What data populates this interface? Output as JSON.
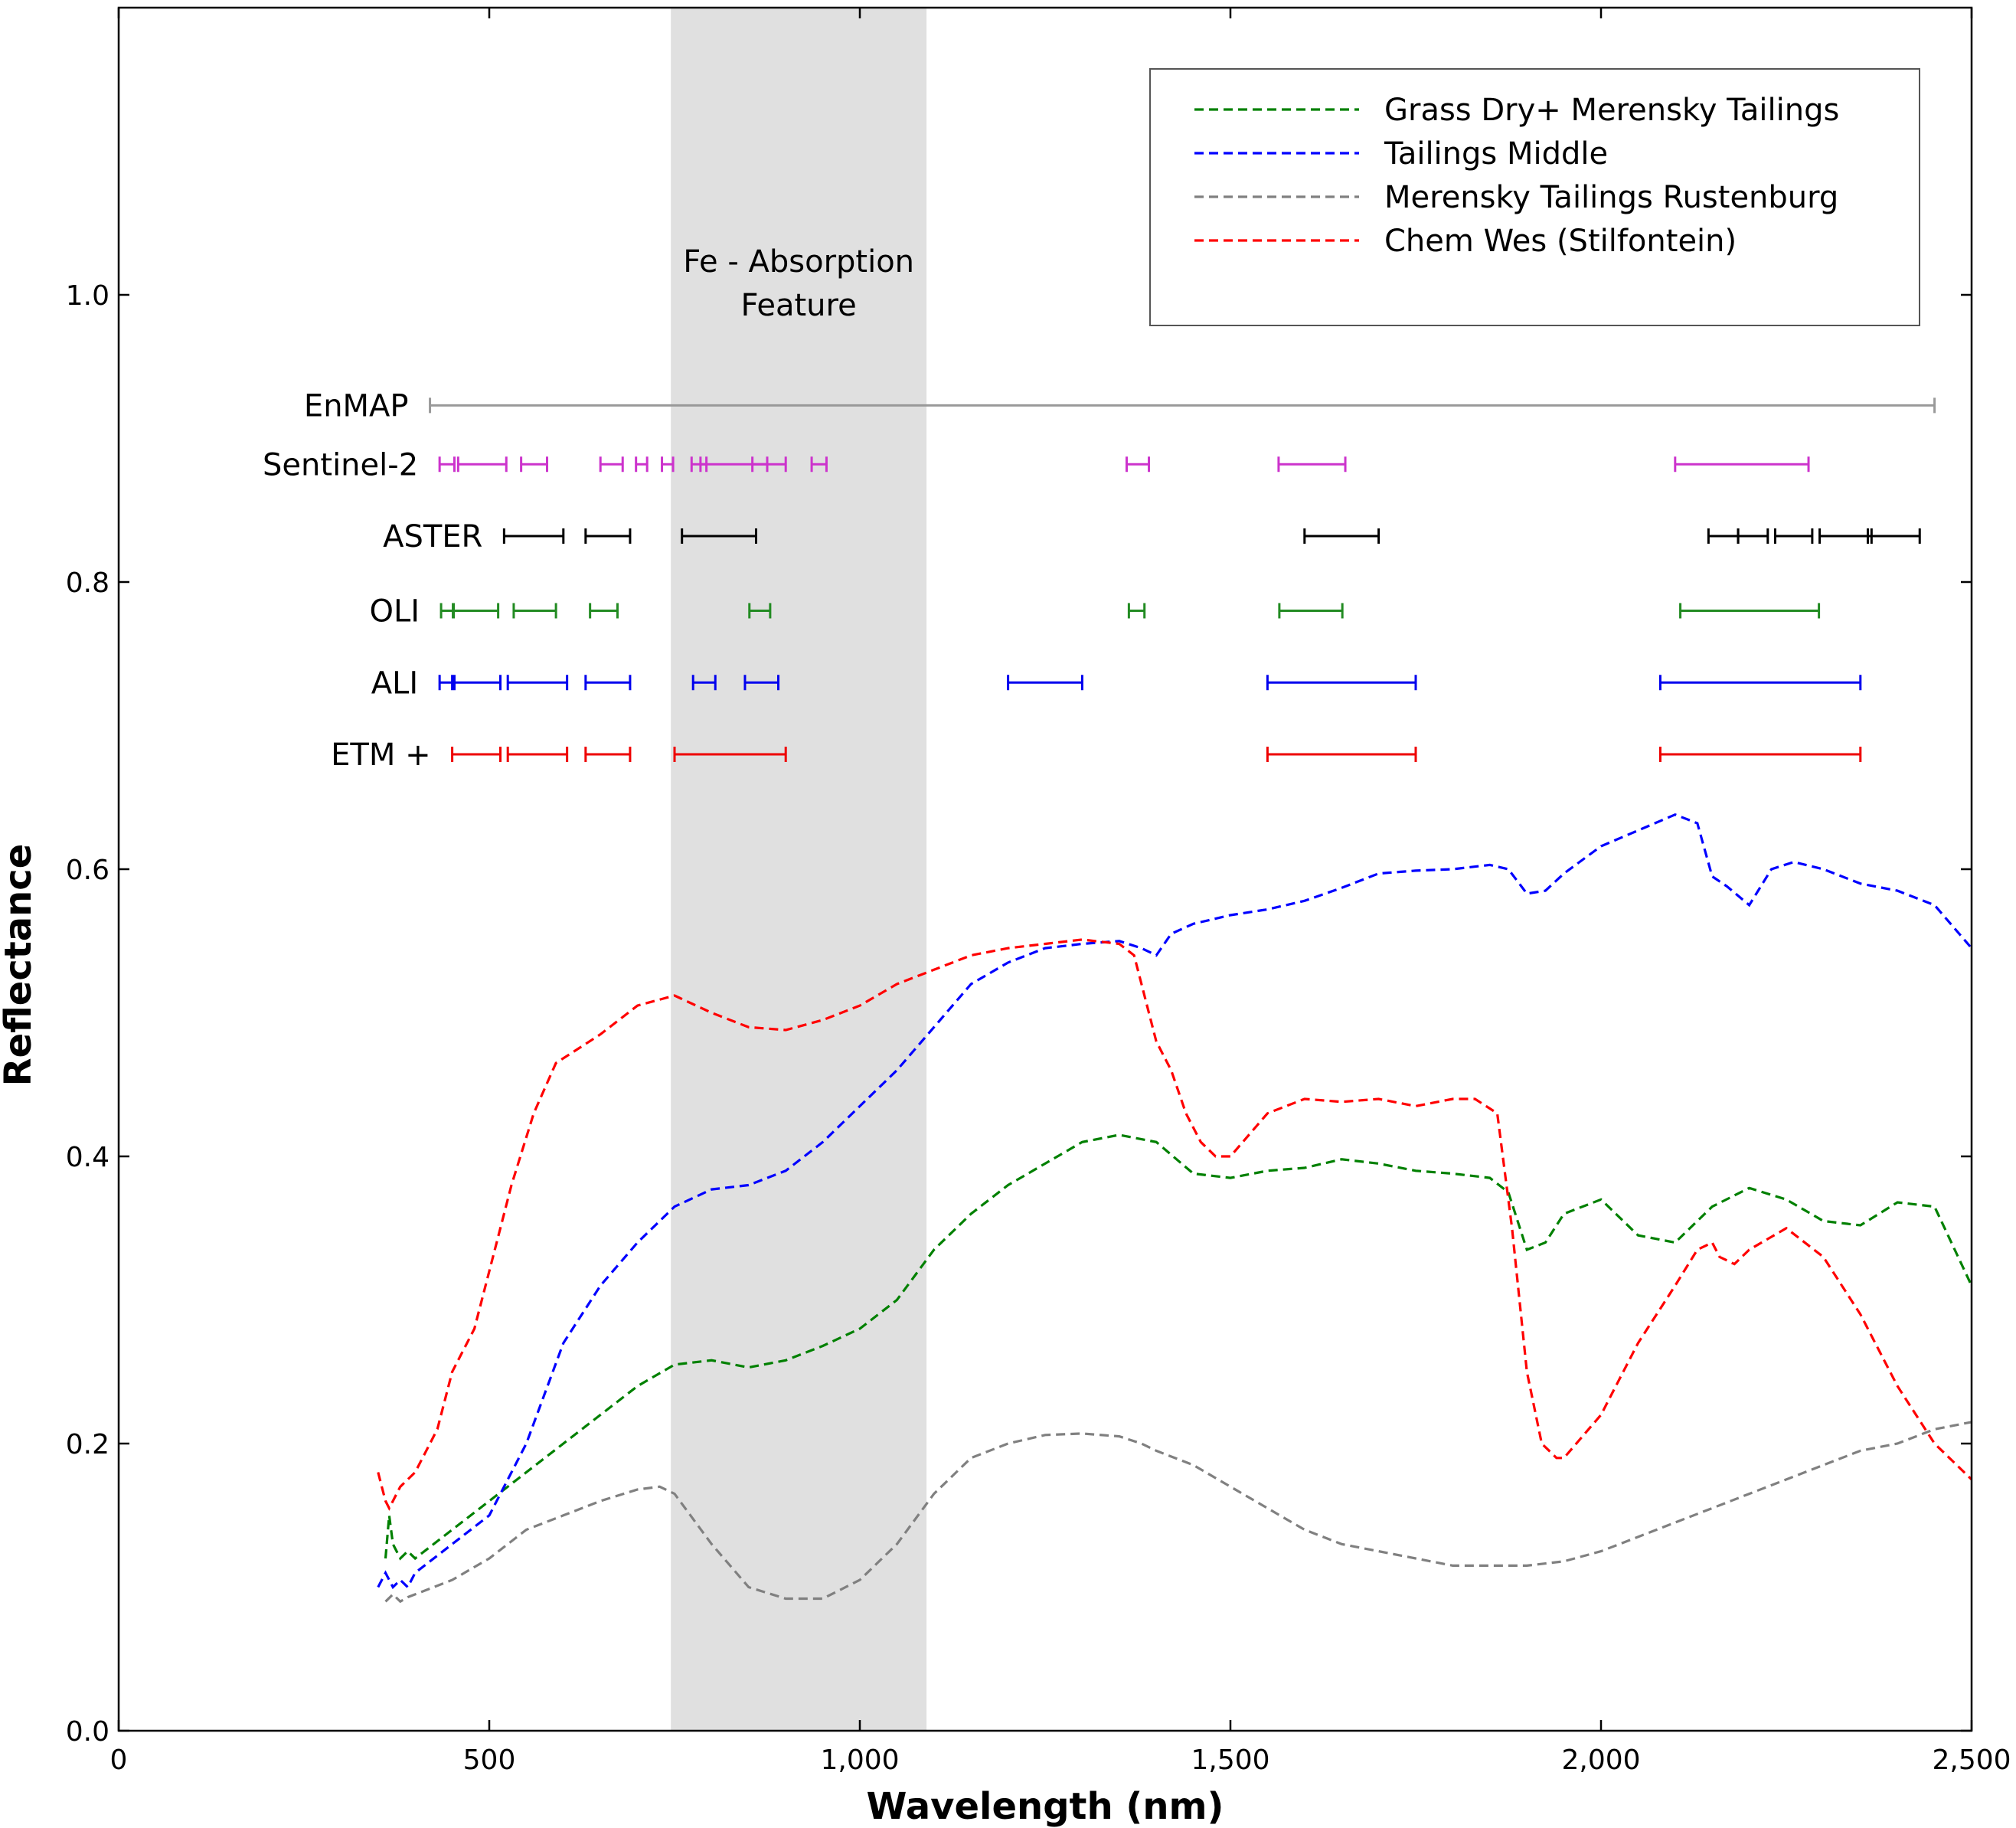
{
  "chart_data": {
    "type": "line",
    "xlabel": "Wavelength (nm)",
    "ylabel": "Reflectance",
    "xlim": [
      0,
      2500
    ],
    "ylim": [
      0,
      1.2
    ],
    "xticks": [
      0,
      500,
      1000,
      1500,
      2000,
      2500
    ],
    "xtick_labels": [
      "0",
      "500",
      "1,000",
      "1,500",
      "2,000",
      "2,500"
    ],
    "yticks": [
      0,
      0.2,
      0.4,
      0.6,
      0.8,
      1.0
    ],
    "ytick_labels": [
      "0.0",
      "0.2",
      "0.4",
      "0.6",
      "0.8",
      "1.0"
    ],
    "grid": false,
    "legend_position": "top-right",
    "shaded_region": {
      "x_start": 745,
      "x_end": 1090,
      "color": "#e0e0e0",
      "label_line1": "Fe - Absorption",
      "label_line2": "Feature"
    },
    "series": [
      {
        "name": "Grass Dry+ Merensky Tailings",
        "color": "#008000",
        "x": [
          360,
          365,
          370,
          380,
          390,
          400,
          450,
          500,
          550,
          600,
          650,
          700,
          750,
          800,
          850,
          900,
          950,
          1000,
          1050,
          1100,
          1150,
          1200,
          1250,
          1300,
          1350,
          1400,
          1450,
          1500,
          1550,
          1600,
          1650,
          1700,
          1750,
          1800,
          1850,
          1875,
          1900,
          1925,
          1950,
          2000,
          2050,
          2100,
          2150,
          2200,
          2250,
          2300,
          2350,
          2400,
          2450,
          2500
        ],
        "y": [
          0.12,
          0.15,
          0.13,
          0.12,
          0.125,
          0.12,
          0.14,
          0.16,
          0.18,
          0.2,
          0.22,
          0.24,
          0.255,
          0.258,
          0.253,
          0.258,
          0.268,
          0.28,
          0.3,
          0.335,
          0.36,
          0.38,
          0.395,
          0.41,
          0.415,
          0.41,
          0.388,
          0.385,
          0.39,
          0.392,
          0.398,
          0.395,
          0.39,
          0.388,
          0.385,
          0.375,
          0.335,
          0.34,
          0.36,
          0.37,
          0.345,
          0.34,
          0.365,
          0.378,
          0.37,
          0.355,
          0.352,
          0.368,
          0.365,
          0.31
        ]
      },
      {
        "name": "Tailings Middle",
        "color": "#0000ff",
        "x": [
          350,
          360,
          370,
          380,
          390,
          400,
          450,
          500,
          550,
          600,
          650,
          700,
          750,
          800,
          850,
          900,
          950,
          1000,
          1050,
          1100,
          1150,
          1200,
          1250,
          1300,
          1350,
          1380,
          1400,
          1420,
          1450,
          1500,
          1550,
          1600,
          1650,
          1700,
          1750,
          1800,
          1850,
          1875,
          1900,
          1925,
          1950,
          2000,
          2050,
          2100,
          2130,
          2150,
          2170,
          2200,
          2230,
          2260,
          2300,
          2350,
          2400,
          2450,
          2500
        ],
        "y": [
          0.1,
          0.11,
          0.1,
          0.105,
          0.1,
          0.11,
          0.13,
          0.15,
          0.2,
          0.27,
          0.31,
          0.34,
          0.365,
          0.377,
          0.38,
          0.39,
          0.41,
          0.435,
          0.46,
          0.49,
          0.52,
          0.535,
          0.545,
          0.548,
          0.55,
          0.545,
          0.54,
          0.555,
          0.562,
          0.568,
          0.572,
          0.578,
          0.587,
          0.597,
          0.599,
          0.6,
          0.603,
          0.6,
          0.583,
          0.585,
          0.597,
          0.616,
          0.627,
          0.638,
          0.632,
          0.595,
          0.588,
          0.575,
          0.6,
          0.605,
          0.6,
          0.59,
          0.585,
          0.575,
          0.545
        ]
      },
      {
        "name": "Merensky Tailings Rustenburg",
        "color": "#808080",
        "x": [
          360,
          370,
          380,
          390,
          400,
          450,
          500,
          550,
          600,
          650,
          700,
          730,
          750,
          800,
          850,
          900,
          950,
          1000,
          1050,
          1100,
          1150,
          1200,
          1250,
          1300,
          1350,
          1380,
          1400,
          1450,
          1500,
          1550,
          1600,
          1650,
          1700,
          1750,
          1800,
          1850,
          1900,
          1950,
          2000,
          2050,
          2100,
          2150,
          2200,
          2250,
          2300,
          2350,
          2400,
          2450,
          2500
        ],
        "y": [
          0.09,
          0.095,
          0.09,
          0.093,
          0.095,
          0.105,
          0.12,
          0.14,
          0.15,
          0.16,
          0.168,
          0.17,
          0.165,
          0.13,
          0.1,
          0.092,
          0.092,
          0.105,
          0.13,
          0.165,
          0.19,
          0.2,
          0.206,
          0.207,
          0.205,
          0.2,
          0.195,
          0.185,
          0.17,
          0.155,
          0.14,
          0.13,
          0.125,
          0.12,
          0.115,
          0.115,
          0.115,
          0.118,
          0.125,
          0.135,
          0.145,
          0.155,
          0.165,
          0.175,
          0.185,
          0.195,
          0.2,
          0.21,
          0.215
        ]
      },
      {
        "name": "Chem Wes (Stilfontein)",
        "color": "#ff0000",
        "x": [
          350,
          355,
          360,
          365,
          370,
          380,
          400,
          430,
          450,
          480,
          500,
          530,
          560,
          590,
          620,
          650,
          700,
          750,
          800,
          850,
          900,
          950,
          1000,
          1050,
          1100,
          1150,
          1200,
          1250,
          1300,
          1350,
          1370,
          1390,
          1400,
          1420,
          1440,
          1460,
          1480,
          1500,
          1550,
          1600,
          1650,
          1700,
          1750,
          1800,
          1830,
          1860,
          1880,
          1900,
          1920,
          1940,
          1950,
          2000,
          2050,
          2100,
          2130,
          2150,
          2160,
          2180,
          2200,
          2250,
          2300,
          2350,
          2400,
          2450,
          2500
        ],
        "y": [
          0.18,
          0.17,
          0.16,
          0.155,
          0.16,
          0.17,
          0.18,
          0.21,
          0.25,
          0.28,
          0.32,
          0.38,
          0.43,
          0.465,
          0.475,
          0.485,
          0.505,
          0.512,
          0.5,
          0.49,
          0.488,
          0.495,
          0.505,
          0.52,
          0.53,
          0.54,
          0.545,
          0.548,
          0.551,
          0.548,
          0.54,
          0.5,
          0.48,
          0.46,
          0.43,
          0.41,
          0.4,
          0.4,
          0.43,
          0.44,
          0.438,
          0.44,
          0.435,
          0.44,
          0.44,
          0.43,
          0.35,
          0.25,
          0.2,
          0.19,
          0.19,
          0.22,
          0.27,
          0.31,
          0.335,
          0.34,
          0.33,
          0.325,
          0.335,
          0.35,
          0.33,
          0.29,
          0.24,
          0.2,
          0.175
        ]
      }
    ],
    "sensors": [
      {
        "name": "EnMAP",
        "color": "#999999",
        "y": 0.923,
        "bands": [
          [
            420,
            2450
          ]
        ]
      },
      {
        "name": "Sentinel-2",
        "color": "#cc33cc",
        "y": 0.882,
        "bands": [
          [
            433,
            453
          ],
          [
            458,
            523
          ],
          [
            543,
            578
          ],
          [
            650,
            680
          ],
          [
            698,
            713
          ],
          [
            733,
            748
          ],
          [
            773,
            793
          ],
          [
            785,
            900
          ],
          [
            855,
            875
          ],
          [
            935,
            955
          ],
          [
            1360,
            1390
          ],
          [
            1565,
            1655
          ],
          [
            2100,
            2280
          ]
        ]
      },
      {
        "name": "ASTER",
        "color": "#000000",
        "y": 0.832,
        "bands": [
          [
            520,
            600
          ],
          [
            630,
            690
          ],
          [
            760,
            860
          ],
          [
            1600,
            1700
          ],
          [
            2145,
            2185
          ],
          [
            2185,
            2225
          ],
          [
            2235,
            2285
          ],
          [
            2295,
            2365
          ],
          [
            2360,
            2430
          ]
        ]
      },
      {
        "name": "OLI",
        "color": "#228b22",
        "y": 0.78,
        "bands": [
          [
            435,
            451
          ],
          [
            452,
            512
          ],
          [
            533,
            590
          ],
          [
            636,
            673
          ],
          [
            851,
            879
          ],
          [
            1363,
            1384
          ],
          [
            1566,
            1651
          ],
          [
            2107,
            2294
          ]
        ]
      },
      {
        "name": "ALI",
        "color": "#0000ee",
        "y": 0.73,
        "bands": [
          [
            433,
            453
          ],
          [
            450,
            515
          ],
          [
            525,
            605
          ],
          [
            630,
            690
          ],
          [
            775,
            805
          ],
          [
            845,
            890
          ],
          [
            1200,
            1300
          ],
          [
            1550,
            1750
          ],
          [
            2080,
            2350
          ]
        ]
      },
      {
        "name": "ETM +",
        "color": "#ee0000",
        "y": 0.68,
        "bands": [
          [
            450,
            515
          ],
          [
            525,
            605
          ],
          [
            630,
            690
          ],
          [
            750,
            900
          ],
          [
            1550,
            1750
          ],
          [
            2080,
            2350
          ]
        ]
      }
    ]
  }
}
